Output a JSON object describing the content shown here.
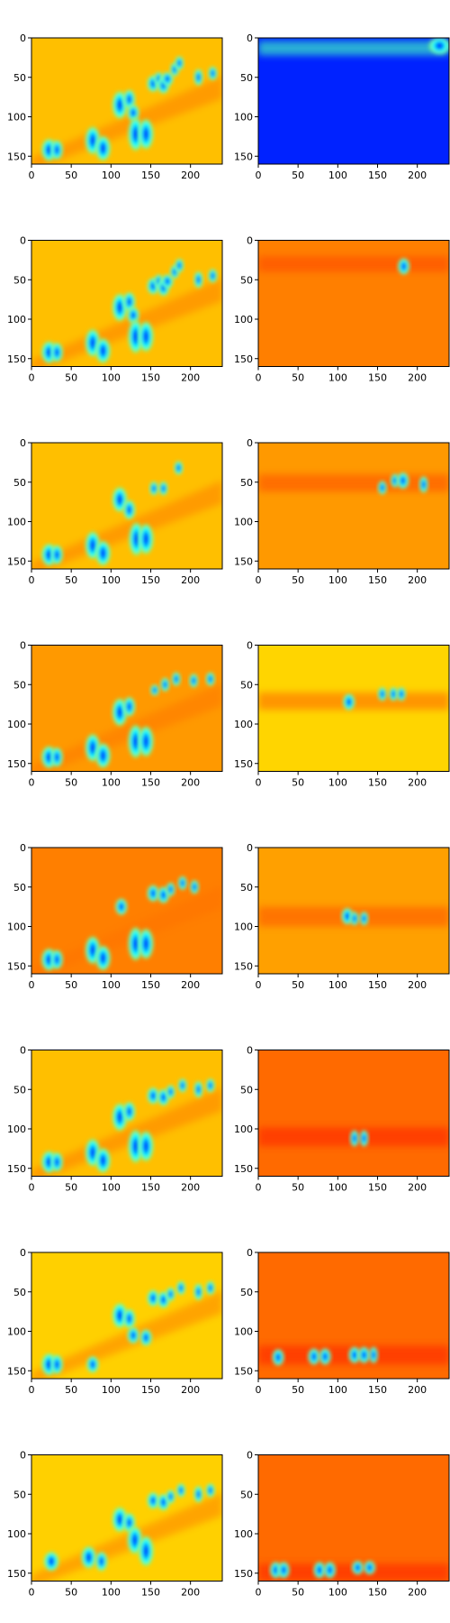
{
  "chart_data": {
    "type": "heatmap",
    "title": "",
    "colormap": "jet",
    "colormap_stops": [
      "#00007f",
      "#0000ff",
      "#007fff",
      "#00ffff",
      "#7fff7f",
      "#ffff00",
      "#ff7f00",
      "#ff0000",
      "#7f0000"
    ],
    "grid": false,
    "layout": {
      "rows": 8,
      "columns": 2
    },
    "x_range": [
      0,
      240
    ],
    "y_range": [
      160,
      0
    ],
    "x_ticks": [
      0,
      50,
      100,
      150,
      200
    ],
    "y_ticks": [
      0,
      50,
      100,
      150
    ],
    "panels": [
      {
        "id": "r1-left",
        "row": 1,
        "column": "left",
        "background": "#ffbf00",
        "band_y": [
          0,
          0
        ],
        "band_color": "#ff9900",
        "blobs": [
          [
            22,
            142,
            5,
            8
          ],
          [
            32,
            142,
            4,
            7
          ],
          [
            77,
            130,
            5,
            10
          ],
          [
            90,
            140,
            5,
            9
          ],
          [
            111,
            85,
            5,
            10
          ],
          [
            123,
            78,
            4,
            7
          ],
          [
            128,
            95,
            4,
            6
          ],
          [
            131,
            122,
            5,
            12
          ],
          [
            144,
            122,
            5,
            11
          ],
          [
            153,
            58,
            4,
            6
          ],
          [
            160,
            52,
            3,
            5
          ],
          [
            166,
            60,
            4,
            6
          ],
          [
            171,
            52,
            4,
            5
          ],
          [
            180,
            40,
            3,
            5
          ],
          [
            186,
            32,
            3,
            5
          ],
          [
            210,
            50,
            3,
            6
          ],
          [
            228,
            45,
            3,
            5
          ]
        ]
      },
      {
        "id": "r1-right",
        "row": 1,
        "column": "right",
        "background": "#0022ff",
        "band_y": [
          4,
          22
        ],
        "band_color": "#38e0c8",
        "blobs": [
          [
            228,
            10,
            7,
            6
          ]
        ]
      },
      {
        "id": "r2-left",
        "row": 2,
        "column": "left",
        "background": "#ffbf00",
        "band_y": [
          0,
          0
        ],
        "band_color": "#ff9900",
        "blobs": [
          [
            22,
            142,
            5,
            8
          ],
          [
            32,
            142,
            4,
            7
          ],
          [
            77,
            130,
            5,
            10
          ],
          [
            90,
            140,
            5,
            9
          ],
          [
            111,
            85,
            5,
            10
          ],
          [
            123,
            78,
            4,
            7
          ],
          [
            128,
            95,
            4,
            6
          ],
          [
            131,
            122,
            5,
            12
          ],
          [
            144,
            122,
            5,
            11
          ],
          [
            153,
            58,
            4,
            6
          ],
          [
            160,
            52,
            3,
            5
          ],
          [
            166,
            60,
            4,
            6
          ],
          [
            171,
            52,
            4,
            5
          ],
          [
            180,
            40,
            3,
            5
          ],
          [
            186,
            32,
            3,
            5
          ],
          [
            210,
            50,
            3,
            6
          ],
          [
            228,
            45,
            3,
            5
          ]
        ]
      },
      {
        "id": "r2-right",
        "row": 2,
        "column": "right",
        "background": "#ff7f00",
        "band_y": [
          20,
          40
        ],
        "band_color": "#ff5500",
        "blobs": [
          [
            183,
            33,
            4,
            6
          ]
        ]
      },
      {
        "id": "r3-left",
        "row": 3,
        "column": "left",
        "background": "#ffbf00",
        "band_y": [
          0,
          0
        ],
        "band_color": "#ff9900",
        "blobs": [
          [
            22,
            142,
            5,
            8
          ],
          [
            32,
            142,
            4,
            7
          ],
          [
            77,
            130,
            5,
            10
          ],
          [
            90,
            140,
            5,
            9
          ],
          [
            111,
            72,
            5,
            9
          ],
          [
            123,
            85,
            4,
            7
          ],
          [
            132,
            122,
            5,
            12
          ],
          [
            144,
            122,
            5,
            11
          ],
          [
            154,
            58,
            3,
            5
          ],
          [
            166,
            58,
            3,
            5
          ],
          [
            185,
            32,
            3,
            5
          ]
        ]
      },
      {
        "id": "r3-right",
        "row": 3,
        "column": "right",
        "background": "#ff9900",
        "band_y": [
          40,
          62
        ],
        "band_color": "#ff6000",
        "blobs": [
          [
            156,
            57,
            3,
            5
          ],
          [
            172,
            48,
            3,
            5
          ],
          [
            182,
            48,
            4,
            6
          ],
          [
            208,
            53,
            3,
            6
          ]
        ]
      },
      {
        "id": "r4-left",
        "row": 4,
        "column": "left",
        "background": "#ff9900",
        "band_y": [
          0,
          0
        ],
        "band_color": "#ff8000",
        "blobs": [
          [
            22,
            142,
            5,
            8
          ],
          [
            32,
            142,
            4,
            7
          ],
          [
            77,
            130,
            5,
            10
          ],
          [
            90,
            140,
            5,
            9
          ],
          [
            111,
            85,
            5,
            10
          ],
          [
            123,
            78,
            4,
            7
          ],
          [
            131,
            122,
            5,
            12
          ],
          [
            144,
            122,
            5,
            11
          ],
          [
            155,
            57,
            3,
            4
          ],
          [
            168,
            50,
            3,
            5
          ],
          [
            182,
            43,
            3,
            5
          ],
          [
            204,
            45,
            3,
            5
          ],
          [
            225,
            43,
            3,
            5
          ]
        ]
      },
      {
        "id": "r4-right",
        "row": 4,
        "column": "right",
        "background": "#ffd500",
        "band_y": [
          60,
          82
        ],
        "band_color": "#ff8000",
        "blobs": [
          [
            114,
            72,
            4,
            6
          ],
          [
            156,
            62,
            3,
            5
          ],
          [
            170,
            62,
            3,
            5
          ],
          [
            180,
            62,
            3,
            5
          ]
        ]
      },
      {
        "id": "r5-left",
        "row": 5,
        "column": "left",
        "background": "#ff7f00",
        "band_y": [
          0,
          0
        ],
        "band_color": "#ff4400",
        "blobs": [
          [
            22,
            142,
            5,
            8
          ],
          [
            32,
            142,
            4,
            7
          ],
          [
            77,
            130,
            5,
            10
          ],
          [
            90,
            140,
            5,
            9
          ],
          [
            113,
            75,
            4,
            6
          ],
          [
            131,
            122,
            5,
            12
          ],
          [
            144,
            122,
            5,
            11
          ],
          [
            153,
            58,
            4,
            6
          ],
          [
            166,
            60,
            4,
            6
          ],
          [
            175,
            53,
            3,
            5
          ],
          [
            190,
            45,
            3,
            5
          ],
          [
            205,
            50,
            3,
            5
          ]
        ]
      },
      {
        "id": "r5-right",
        "row": 5,
        "column": "right",
        "background": "#ffa000",
        "band_y": [
          75,
          100
        ],
        "band_color": "#ff6600",
        "blobs": [
          [
            112,
            87,
            4,
            6
          ],
          [
            121,
            90,
            3,
            5
          ],
          [
            133,
            90,
            3,
            5
          ]
        ]
      },
      {
        "id": "r6-left",
        "row": 6,
        "column": "left",
        "background": "#ffbf00",
        "band_y": [
          0,
          0
        ],
        "band_color": "#ff9900",
        "blobs": [
          [
            22,
            142,
            5,
            8
          ],
          [
            32,
            142,
            4,
            7
          ],
          [
            77,
            130,
            5,
            10
          ],
          [
            90,
            140,
            5,
            9
          ],
          [
            111,
            85,
            5,
            10
          ],
          [
            123,
            78,
            4,
            7
          ],
          [
            131,
            122,
            5,
            12
          ],
          [
            144,
            122,
            5,
            11
          ],
          [
            153,
            58,
            4,
            6
          ],
          [
            166,
            60,
            4,
            6
          ],
          [
            175,
            53,
            3,
            5
          ],
          [
            190,
            45,
            3,
            5
          ],
          [
            210,
            50,
            3,
            6
          ],
          [
            225,
            45,
            3,
            5
          ]
        ]
      },
      {
        "id": "r6-right",
        "row": 6,
        "column": "right",
        "background": "#ff6a00",
        "band_y": [
          98,
          122
        ],
        "band_color": "#ff3300",
        "blobs": [
          [
            121,
            112,
            3,
            6
          ],
          [
            133,
            112,
            3,
            6
          ]
        ]
      },
      {
        "id": "r7-left",
        "row": 7,
        "column": "left",
        "background": "#ffd000",
        "band_y": [
          0,
          0
        ],
        "band_color": "#ffa000",
        "blobs": [
          [
            22,
            142,
            5,
            8
          ],
          [
            32,
            142,
            4,
            7
          ],
          [
            77,
            142,
            4,
            6
          ],
          [
            111,
            80,
            5,
            9
          ],
          [
            123,
            84,
            4,
            7
          ],
          [
            128,
            105,
            4,
            6
          ],
          [
            144,
            108,
            4,
            6
          ],
          [
            153,
            58,
            4,
            6
          ],
          [
            166,
            60,
            4,
            6
          ],
          [
            175,
            53,
            3,
            5
          ],
          [
            188,
            45,
            3,
            5
          ],
          [
            210,
            50,
            3,
            6
          ],
          [
            225,
            45,
            3,
            5
          ]
        ]
      },
      {
        "id": "r7-right",
        "row": 7,
        "column": "right",
        "background": "#ff6a00",
        "band_y": [
          118,
          142
        ],
        "band_color": "#ff3300",
        "blobs": [
          [
            25,
            133,
            4,
            6
          ],
          [
            70,
            132,
            4,
            6
          ],
          [
            84,
            132,
            4,
            6
          ],
          [
            121,
            130,
            4,
            6
          ],
          [
            133,
            130,
            4,
            6
          ],
          [
            145,
            130,
            3,
            6
          ]
        ]
      },
      {
        "id": "r8-left",
        "row": 8,
        "column": "left",
        "background": "#ffd000",
        "band_y": [
          0,
          0
        ],
        "band_color": "#ffa000",
        "blobs": [
          [
            25,
            135,
            5,
            7
          ],
          [
            72,
            130,
            5,
            8
          ],
          [
            88,
            135,
            4,
            7
          ],
          [
            111,
            82,
            5,
            9
          ],
          [
            123,
            86,
            4,
            7
          ],
          [
            130,
            108,
            5,
            10
          ],
          [
            144,
            122,
            5,
            11
          ],
          [
            153,
            58,
            4,
            6
          ],
          [
            166,
            60,
            4,
            6
          ],
          [
            175,
            53,
            3,
            5
          ],
          [
            188,
            45,
            3,
            5
          ],
          [
            210,
            50,
            3,
            6
          ],
          [
            225,
            45,
            3,
            5
          ]
        ]
      },
      {
        "id": "r8-right",
        "row": 8,
        "column": "right",
        "background": "#ff6a00",
        "band_y": [
          138,
          160
        ],
        "band_color": "#ff3300",
        "blobs": [
          [
            22,
            146,
            4,
            6
          ],
          [
            32,
            146,
            4,
            6
          ],
          [
            77,
            146,
            4,
            6
          ],
          [
            90,
            146,
            4,
            6
          ],
          [
            125,
            143,
            4,
            5
          ],
          [
            140,
            143,
            4,
            5
          ]
        ]
      }
    ]
  }
}
